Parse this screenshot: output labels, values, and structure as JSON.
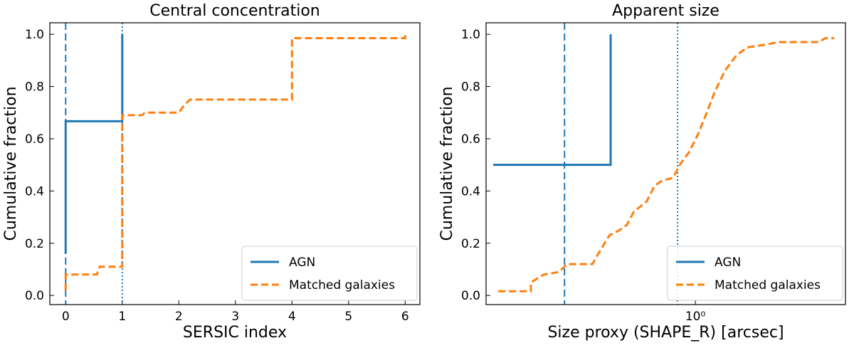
{
  "chart_data": [
    {
      "type": "line",
      "title": "Central concentration",
      "x_label": "SERSIC index",
      "y_label": "Cumulative fraction",
      "xlim": [
        -0.28,
        6.26
      ],
      "ylim": [
        -0.035,
        1.044
      ],
      "xticks": [
        0,
        1,
        2,
        3,
        4,
        5,
        6
      ],
      "yticks": [
        {
          "value": 0,
          "label": "0.0"
        },
        0.2,
        0.4,
        0.6,
        0.8,
        {
          "value": 1,
          "label": "1.0"
        }
      ],
      "legend": "lower right",
      "series": [
        {
          "name": "AGN",
          "color": "#1f77b4",
          "style": "solid",
          "x": [
            0,
            0,
            1,
            1
          ],
          "values": [
            0.16,
            0.667,
            0.667,
            1.0
          ]
        },
        {
          "name": "Matched galaxies",
          "color": "#ff7f0e",
          "style": "dashed",
          "x": [
            0,
            0,
            0.55,
            0.6,
            1,
            1,
            1.35,
            1.4,
            2,
            2.1,
            2.2,
            4,
            4,
            6,
            6
          ],
          "values": [
            0.02,
            0.08,
            0.08,
            0.11,
            0.11,
            0.69,
            0.69,
            0.7,
            0.7,
            0.73,
            0.75,
            0.75,
            0.985,
            0.985,
            1.0
          ]
        }
      ],
      "vlines": [
        {
          "x": 0,
          "color": "#1f77b4",
          "style": "dashed"
        },
        {
          "x": 1,
          "color": "#1f77b4",
          "style": "dotted"
        }
      ]
    },
    {
      "type": "line",
      "title": "Apparent size",
      "x_label": "Size proxy (SHAPE_R) [arcsec]",
      "y_label": "Cumulative fraction",
      "xscale": "log",
      "xlim": [
        0.244,
        2.75
      ],
      "ylim": [
        -0.035,
        1.044
      ],
      "xticks": [
        {
          "value": 1,
          "label": "10⁰"
        }
      ],
      "yticks": [
        {
          "value": 0,
          "label": "0.0"
        },
        0.2,
        0.4,
        0.6,
        0.8,
        {
          "value": 1,
          "label": "1.0"
        }
      ],
      "legend": "lower right",
      "series": [
        {
          "name": "AGN",
          "color": "#1f77b4",
          "style": "solid",
          "x": [
            0.256,
            0.565,
            0.565
          ],
          "values": [
            0.5,
            0.5,
            1.0
          ]
        },
        {
          "name": "Matched galaxies",
          "color": "#ff7f0e",
          "style": "dashed",
          "x": [
            0.265,
            0.33,
            0.33,
            0.36,
            0.4,
            0.42,
            0.5,
            0.52,
            0.56,
            0.6,
            0.63,
            0.66,
            0.72,
            0.76,
            0.8,
            0.86,
            0.9,
            0.96,
            1.02,
            1.08,
            1.14,
            1.22,
            1.32,
            1.42,
            1.6,
            1.75,
            2.3,
            2.4,
            2.55
          ],
          "values": [
            0.016,
            0.016,
            0.05,
            0.08,
            0.09,
            0.12,
            0.12,
            0.16,
            0.23,
            0.25,
            0.27,
            0.32,
            0.36,
            0.42,
            0.44,
            0.45,
            0.5,
            0.55,
            0.62,
            0.7,
            0.78,
            0.86,
            0.92,
            0.95,
            0.96,
            0.97,
            0.97,
            0.985,
            0.985
          ]
        }
      ],
      "vlines": [
        {
          "x": 0.414,
          "color": "#1f77b4",
          "style": "dashed"
        },
        {
          "x": 0.887,
          "color": "#1f77b4",
          "style": "dotted"
        }
      ]
    }
  ]
}
